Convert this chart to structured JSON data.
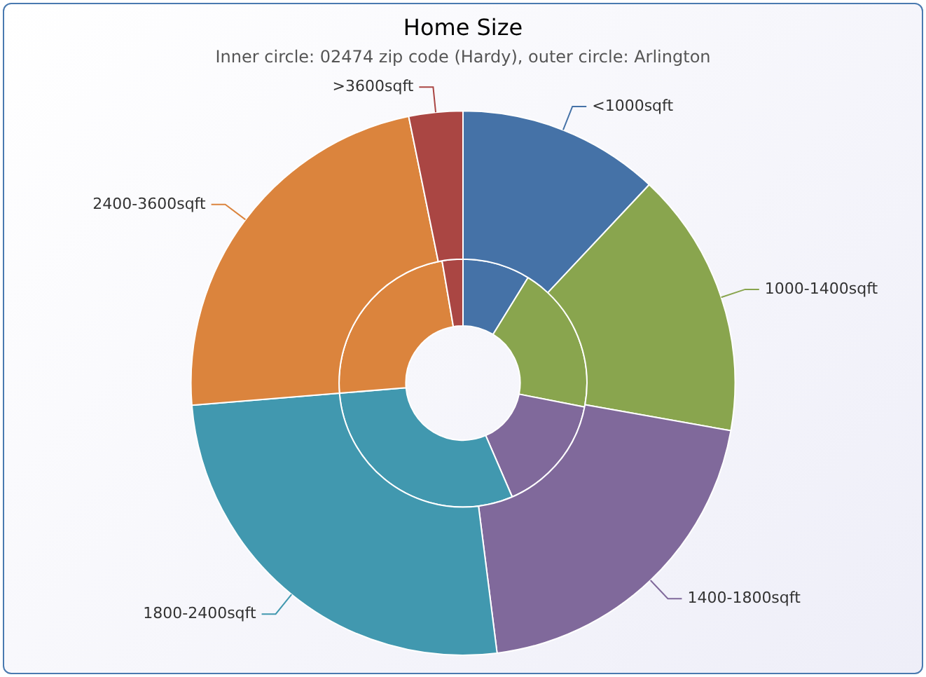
{
  "chart_data": {
    "type": "donut",
    "title": "Home Size",
    "subtitle": "Inner circle: 02474 zip code (Hardy), outer circle: Arlington",
    "categories": [
      "<1000sqft",
      "1000-1400sqft",
      "1400-1800sqft",
      "1800-2400sqft",
      "2400-3600sqft",
      ">3600sqft"
    ],
    "series": [
      {
        "values": [
          12,
          15.8,
          20.2,
          25.7,
          23.1,
          3.2
        ],
        "colors": [
          "#4572a7",
          "#89a54e",
          "#80699b",
          "#4198af",
          "#db843d",
          "#aa4643"
        ]
      },
      {
        "values": [
          8.8,
          19.3,
          15.4,
          30.2,
          23.6,
          2.7
        ],
        "colors": [
          "#4572a7",
          "#89a54e",
          "#80699b",
          "#4198af",
          "#db843d",
          "#aa4643"
        ]
      }
    ],
    "legend": false
  }
}
